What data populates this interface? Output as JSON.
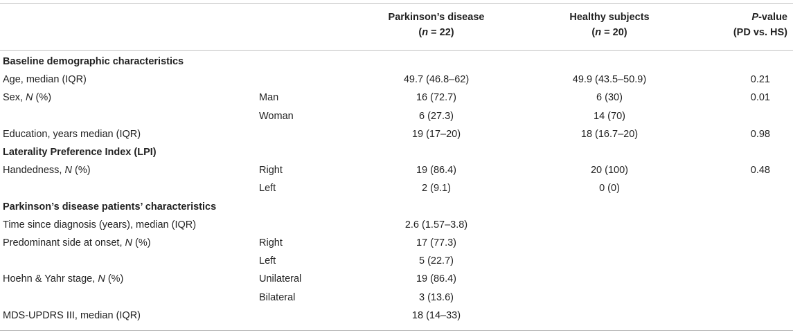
{
  "header": {
    "pd_line1": "Parkinson’s disease",
    "pd_n_pre": "(",
    "pd_n_var": "n",
    "pd_n_post": " = 22)",
    "hs_line1": "Healthy subjects",
    "hs_n_pre": "(",
    "hs_n_var": "n",
    "hs_n_post": " = 20)",
    "p_var": "P",
    "p_line1_rest": "-value",
    "p_line2": "(PD vs. HS)"
  },
  "rows": [
    {
      "label": "Baseline demographic characteristics",
      "section": true
    },
    {
      "label": "Age, median (IQR)",
      "pd": "49.7 (46.8–62)",
      "hs": "49.9 (43.5–50.9)",
      "p": "0.21"
    },
    {
      "label_pre": "Sex, ",
      "label_var": "N",
      "label_post": " (%)",
      "sub": "Man",
      "pd": "16 (72.7)",
      "hs": "6 (30)",
      "p": "0.01"
    },
    {
      "sub": "Woman",
      "pd": "6 (27.3)",
      "hs": "14 (70)"
    },
    {
      "label": "Education, years median (IQR)",
      "pd": "19 (17–20)",
      "hs": "18 (16.7–20)",
      "p": "0.98"
    },
    {
      "label": "Laterality Preference Index (LPI)",
      "section": true
    },
    {
      "label_pre": "Handedness, ",
      "label_var": "N",
      "label_post": " (%)",
      "sub": "Right",
      "pd": "19 (86.4)",
      "hs": "20 (100)",
      "p": "0.48"
    },
    {
      "sub": "Left",
      "pd": "2 (9.1)",
      "hs": "0 (0)"
    },
    {
      "label": "Parkinson’s disease patients’ characteristics",
      "section": true
    },
    {
      "label": "Time since diagnosis (years), median (IQR)",
      "pd": "2.6 (1.57–3.8)"
    },
    {
      "label_pre": "Predominant side at onset, ",
      "label_var": "N",
      "label_post": " (%)",
      "sub": "Right",
      "pd": "17 (77.3)"
    },
    {
      "sub": "Left",
      "pd": "5 (22.7)"
    },
    {
      "label_pre": "Hoehn & Yahr stage, ",
      "label_var": "N",
      "label_post": " (%)",
      "sub": "Unilateral",
      "pd": "19 (86.4)"
    },
    {
      "sub": "Bilateral",
      "pd": "3 (13.6)"
    },
    {
      "label": "MDS-UPDRS III, median (IQR)",
      "pd": "18 (14–33)"
    }
  ]
}
